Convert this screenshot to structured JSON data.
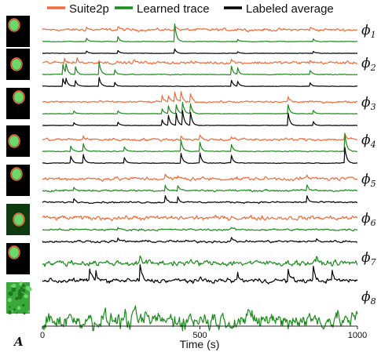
{
  "panel_label": "A",
  "chart_data": {
    "type": "line",
    "legend": {
      "placement": "top",
      "entries": [
        {
          "name": "Suite2p",
          "color": "#f26b38"
        },
        {
          "name": "Learned trace",
          "color": "#1a8c1a"
        },
        {
          "name": "Labeled average",
          "color": "#000000"
        }
      ]
    },
    "xlabel": "Time (s)",
    "ylabel": "",
    "xlim": [
      0,
      1000
    ],
    "xticks": [
      0,
      500,
      1000
    ],
    "grid": false,
    "rows": [
      {
        "label": "ϕ",
        "sub": "1",
        "series": [
          {
            "name": "Suite2p",
            "baseline": 0.0,
            "noise": 0.35,
            "events": [
              [
                140,
                0.5
              ],
              [
                240,
                0.6
              ],
              [
                420,
                0.9
              ],
              [
                620,
                0.4
              ],
              [
                850,
                0.5
              ]
            ]
          },
          {
            "name": "Learned trace",
            "baseline": 0.0,
            "noise": 0.08,
            "events": [
              [
                140,
                0.6
              ],
              [
                240,
                0.9
              ],
              [
                420,
                3.2
              ],
              [
                620,
                0.4
              ],
              [
                860,
                0.5
              ]
            ]
          },
          {
            "name": "Labeled average",
            "baseline": 0.0,
            "noise": 0.05,
            "events": [
              [
                140,
                0.4
              ],
              [
                240,
                0.5
              ],
              [
                420,
                0.8
              ],
              [
                620,
                0.3
              ],
              [
                860,
                0.4
              ]
            ]
          }
        ]
      },
      {
        "label": "ϕ",
        "sub": "2",
        "series": [
          {
            "name": "Suite2p",
            "baseline": 0.0,
            "noise": 0.35,
            "events": [
              [
                70,
                0.9
              ],
              [
                110,
                0.8
              ],
              [
                180,
                0.6
              ],
              [
                290,
                0.5
              ],
              [
                600,
                0.6
              ],
              [
                850,
                0.5
              ]
            ]
          },
          {
            "name": "Learned trace",
            "baseline": 0.0,
            "noise": 0.1,
            "events": [
              [
                65,
                1.8
              ],
              [
                75,
                1.6
              ],
              [
                105,
                1.4
              ],
              [
                180,
                2.2
              ],
              [
                230,
                0.9
              ],
              [
                600,
                1.5
              ],
              [
                620,
                1.2
              ],
              [
                850,
                0.7
              ]
            ]
          },
          {
            "name": "Labeled average",
            "baseline": 0.0,
            "noise": 0.05,
            "events": [
              [
                65,
                1.4
              ],
              [
                75,
                1.2
              ],
              [
                105,
                1.0
              ],
              [
                180,
                1.6
              ],
              [
                230,
                0.7
              ],
              [
                600,
                1.1
              ],
              [
                620,
                0.9
              ],
              [
                850,
                0.6
              ]
            ]
          }
        ]
      },
      {
        "label": "ϕ",
        "sub": "3",
        "series": [
          {
            "name": "Suite2p",
            "baseline": 0.0,
            "noise": 0.25,
            "events": [
              [
                380,
                1.2
              ],
              [
                400,
                1.0
              ],
              [
                420,
                1.6
              ],
              [
                440,
                1.8
              ],
              [
                470,
                1.5
              ],
              [
                780,
                1.0
              ]
            ]
          },
          {
            "name": "Learned trace",
            "baseline": 0.0,
            "noise": 0.05,
            "events": [
              [
                100,
                0.5
              ],
              [
                240,
                0.5
              ],
              [
                380,
                0.9
              ],
              [
                400,
                1.4
              ],
              [
                425,
                1.6
              ],
              [
                445,
                2.0
              ],
              [
                470,
                1.8
              ],
              [
                780,
                1.6
              ],
              [
                860,
                0.6
              ]
            ]
          },
          {
            "name": "Labeled average",
            "baseline": 0.0,
            "noise": 0.04,
            "events": [
              [
                100,
                0.5
              ],
              [
                240,
                0.6
              ],
              [
                380,
                1.0
              ],
              [
                400,
                1.8
              ],
              [
                425,
                2.2
              ],
              [
                445,
                2.6
              ],
              [
                470,
                2.4
              ],
              [
                780,
                2.2
              ],
              [
                860,
                0.7
              ]
            ]
          }
        ]
      },
      {
        "label": "ϕ",
        "sub": "4",
        "series": [
          {
            "name": "Suite2p",
            "baseline": 0.0,
            "noise": 0.35,
            "events": [
              [
                130,
                0.6
              ],
              [
                440,
                0.8
              ],
              [
                500,
                0.7
              ],
              [
                600,
                0.5
              ],
              [
                960,
                1.0
              ]
            ]
          },
          {
            "name": "Learned trace",
            "baseline": 0.0,
            "noise": 0.1,
            "events": [
              [
                90,
                1.0
              ],
              [
                130,
                1.4
              ],
              [
                260,
                0.8
              ],
              [
                440,
                2.0
              ],
              [
                500,
                1.6
              ],
              [
                600,
                1.2
              ],
              [
                960,
                3.2
              ]
            ]
          },
          {
            "name": "Labeled average",
            "baseline": 0.0,
            "noise": 0.08,
            "events": [
              [
                90,
                1.2
              ],
              [
                130,
                1.6
              ],
              [
                260,
                1.0
              ],
              [
                440,
                1.8
              ],
              [
                500,
                1.8
              ],
              [
                600,
                1.4
              ],
              [
                960,
                2.8
              ]
            ]
          }
        ]
      },
      {
        "label": "ϕ",
        "sub": "5",
        "series": [
          {
            "name": "Suite2p",
            "baseline": 0.0,
            "noise": 0.45,
            "events": [
              [
                390,
                0.6
              ],
              [
                430,
                0.5
              ],
              [
                840,
                0.6
              ]
            ]
          },
          {
            "name": "Learned trace",
            "baseline": 0.0,
            "noise": 0.25,
            "events": [
              [
                100,
                0.6
              ],
              [
                390,
                1.0
              ],
              [
                430,
                0.9
              ],
              [
                840,
                1.0
              ]
            ]
          },
          {
            "name": "Labeled average",
            "baseline": 0.0,
            "noise": 0.2,
            "events": [
              [
                100,
                0.7
              ],
              [
                390,
                1.2
              ],
              [
                430,
                1.0
              ],
              [
                840,
                1.2
              ]
            ]
          }
        ]
      },
      {
        "label": "ϕ",
        "sub": "6",
        "series": [
          {
            "name": "Suite2p",
            "baseline": 0.0,
            "noise": 0.55,
            "events": [
              [
                600,
                0.4
              ]
            ]
          },
          {
            "name": "Learned trace",
            "baseline": 0.0,
            "noise": 0.25,
            "events": [
              [
                240,
                0.4
              ],
              [
                600,
                0.4
              ]
            ]
          },
          {
            "name": "Labeled average",
            "baseline": 0.0,
            "noise": 0.3,
            "events": [
              [
                240,
                0.6
              ],
              [
                600,
                0.6
              ],
              [
                870,
                0.4
              ]
            ]
          }
        ]
      },
      {
        "label": "ϕ",
        "sub": "7",
        "series": [
          {
            "name": "Learned trace",
            "baseline": 0.0,
            "noise": 0.55,
            "events": [
              [
                310,
                0.8
              ],
              [
                870,
                0.8
              ]
            ]
          },
          {
            "name": "Labeled average",
            "baseline": 0.0,
            "noise": 0.45,
            "events": [
              [
                150,
                1.8
              ],
              [
                170,
                1.4
              ],
              [
                310,
                2.2
              ],
              [
                620,
                1.0
              ],
              [
                780,
                1.6
              ],
              [
                860,
                1.8
              ],
              [
                920,
                1.2
              ]
            ]
          }
        ]
      },
      {
        "label": "ϕ",
        "sub": "8",
        "series": [
          {
            "name": "Learned trace",
            "baseline": 0.0,
            "noise": 1.0,
            "events": []
          }
        ]
      }
    ]
  }
}
